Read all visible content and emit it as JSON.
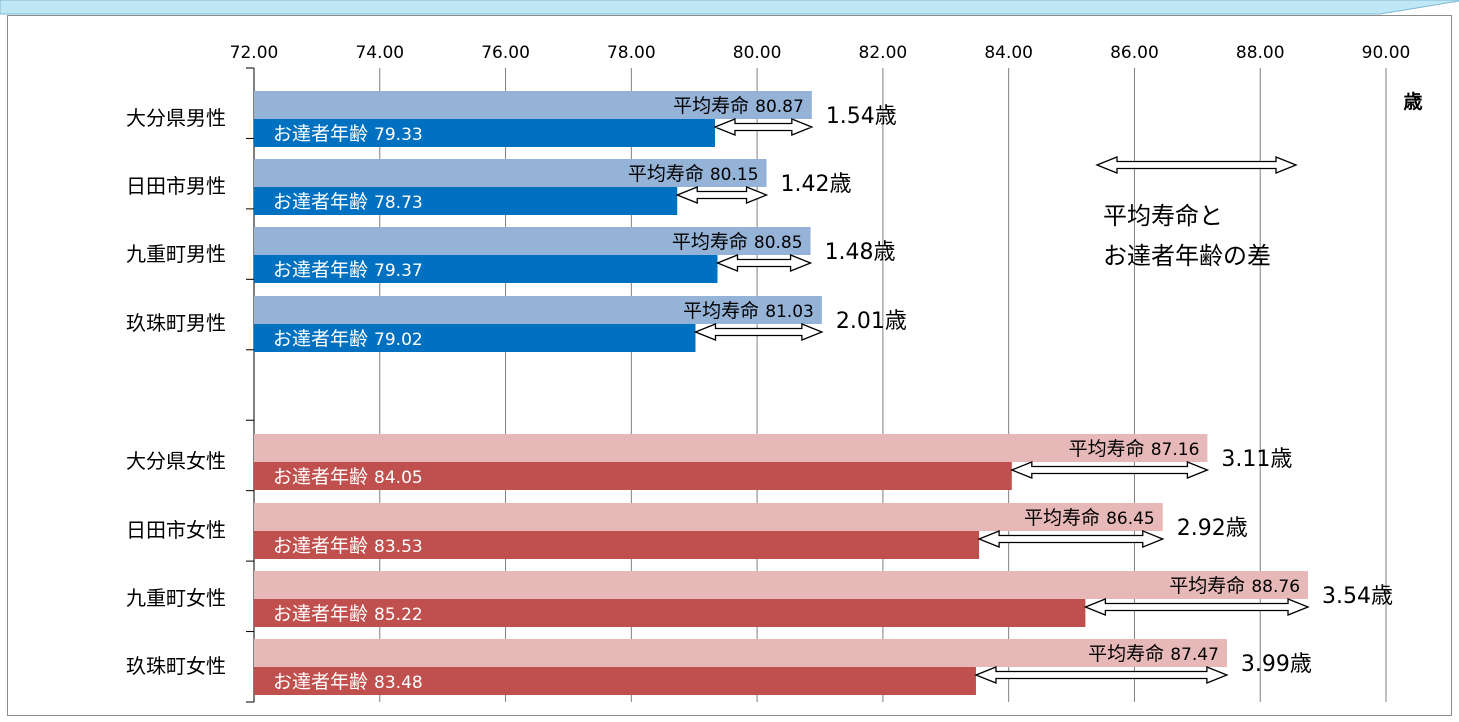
{
  "chart_data": {
    "type": "bar",
    "orientation": "horizontal",
    "xlim": [
      72,
      90
    ],
    "x_ticks": [
      "72.00",
      "74.00",
      "76.00",
      "78.00",
      "80.00",
      "82.00",
      "84.00",
      "86.00",
      "88.00",
      "90.00"
    ],
    "x_tick_values": [
      72,
      74,
      76,
      78,
      80,
      82,
      84,
      86,
      88,
      90
    ],
    "unit_label": "歳",
    "grid": true,
    "bar_labels": {
      "life": "平均寿命",
      "health": "お達者年齢"
    },
    "categories": [
      {
        "label": "大分県男性",
        "life": 80.87,
        "life_text": "80.87",
        "health": 79.33,
        "health_text": "79.33",
        "diff_text": "1.54歳",
        "group": "male"
      },
      {
        "label": "日田市男性",
        "life": 80.15,
        "life_text": "80.15",
        "health": 78.73,
        "health_text": "78.73",
        "diff_text": "1.42歳",
        "group": "male"
      },
      {
        "label": "九重町男性",
        "life": 80.85,
        "life_text": "80.85",
        "health": 79.37,
        "health_text": "79.37",
        "diff_text": "1.48歳",
        "group": "male"
      },
      {
        "label": "玖珠町男性",
        "life": 81.03,
        "life_text": "81.03",
        "health": 79.02,
        "health_text": "79.02",
        "diff_text": "2.01歳",
        "group": "male"
      },
      {
        "label": "大分県女性",
        "life": 87.16,
        "life_text": "87.16",
        "health": 84.05,
        "health_text": "84.05",
        "diff_text": "3.11歳",
        "group": "female"
      },
      {
        "label": "日田市女性",
        "life": 86.45,
        "life_text": "86.45",
        "health": 83.53,
        "health_text": "83.53",
        "diff_text": "2.92歳",
        "group": "female"
      },
      {
        "label": "九重町女性",
        "life": 88.76,
        "life_text": "88.76",
        "health": 85.22,
        "health_text": "85.22",
        "diff_text": "3.54歳",
        "group": "female"
      },
      {
        "label": "玖珠町女性",
        "life": 87.47,
        "life_text": "87.47",
        "health": 83.48,
        "health_text": "83.48",
        "diff_text": "3.99歳",
        "group": "female"
      }
    ],
    "legend": {
      "lines": [
        "平均寿命と",
        "お達者年齢の差"
      ],
      "placement": "right"
    },
    "colors": {
      "male_life": "#95b3d7",
      "male_health": "#0070c0",
      "female_life": "#e6b9b8",
      "female_health": "#c0504d",
      "grid": "#7f7f7f",
      "header_band": "#bfe7f5"
    }
  }
}
